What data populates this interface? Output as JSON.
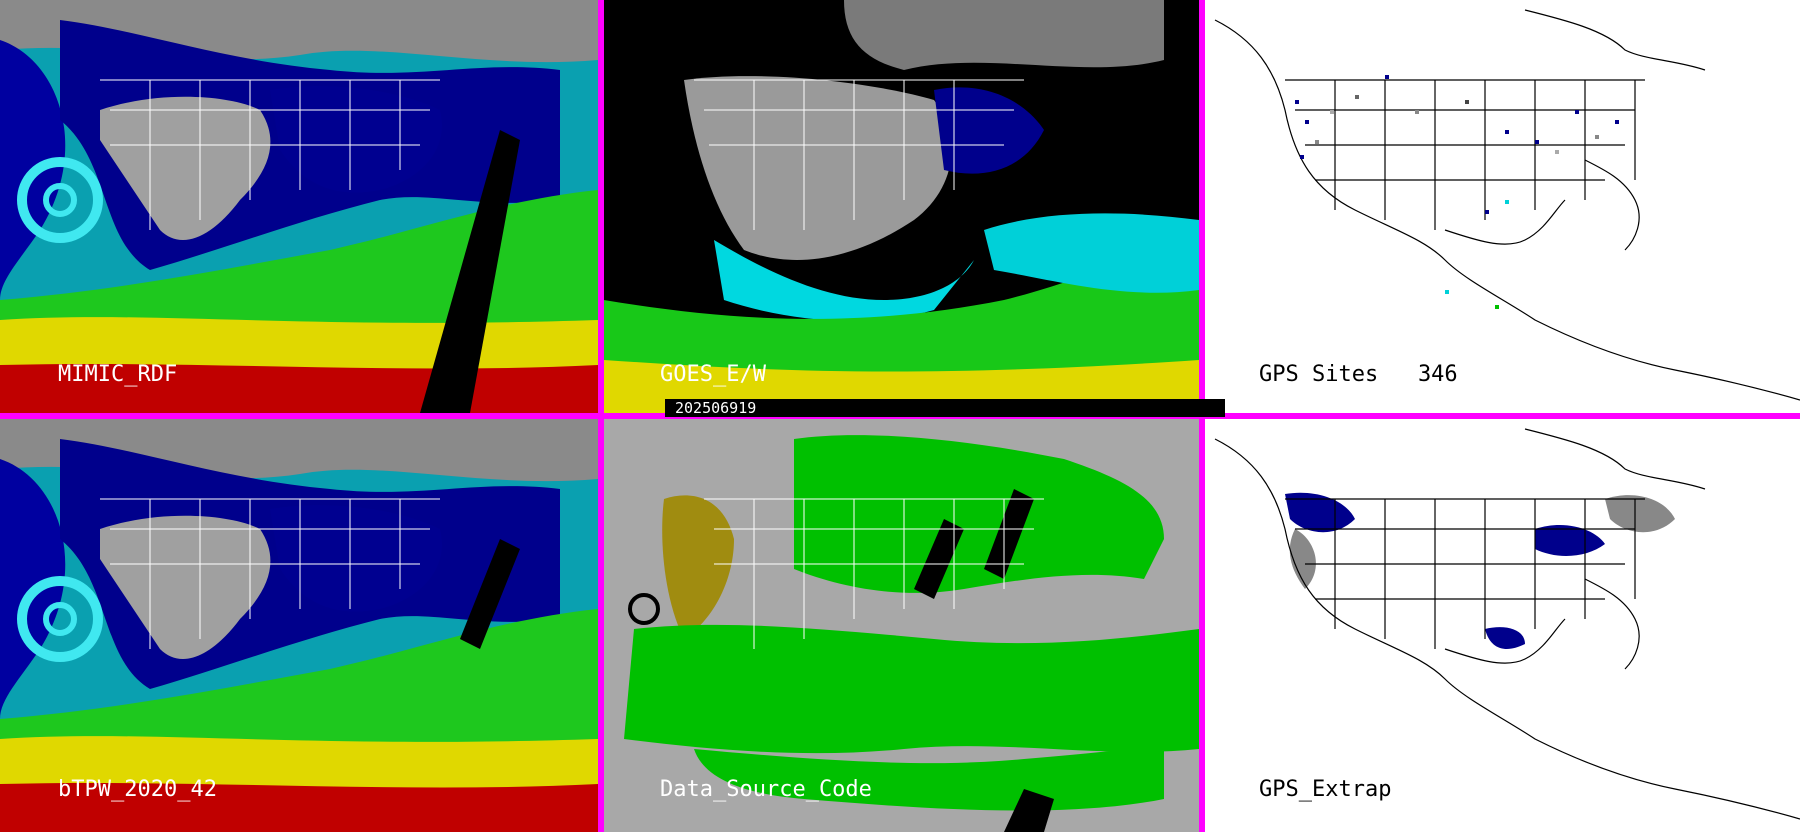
{
  "panels": [
    {
      "label": "MIMIC_RDF",
      "style": "tpw"
    },
    {
      "label": "GOES_E/W",
      "style": "goes"
    },
    {
      "label": "GPS Sites   346",
      "style": "gps-sites"
    },
    {
      "label": "bTPW_2020_42",
      "style": "tpw"
    },
    {
      "label": "Data_Source_Code",
      "style": "source"
    },
    {
      "label": "GPS_Extrap",
      "style": "gps-extrap"
    }
  ],
  "timestamp": "202506919",
  "colors": {
    "divider": "#ff00ff",
    "land_gray": "#9a9a9a",
    "dark_blue": "#00008c",
    "cyan": "#00d0d8",
    "green": "#00c800",
    "yellow": "#e8e000",
    "red": "#c80000",
    "olive": "#a08c10",
    "source_gray": "#a8a8a8",
    "source_green": "#00c000"
  }
}
